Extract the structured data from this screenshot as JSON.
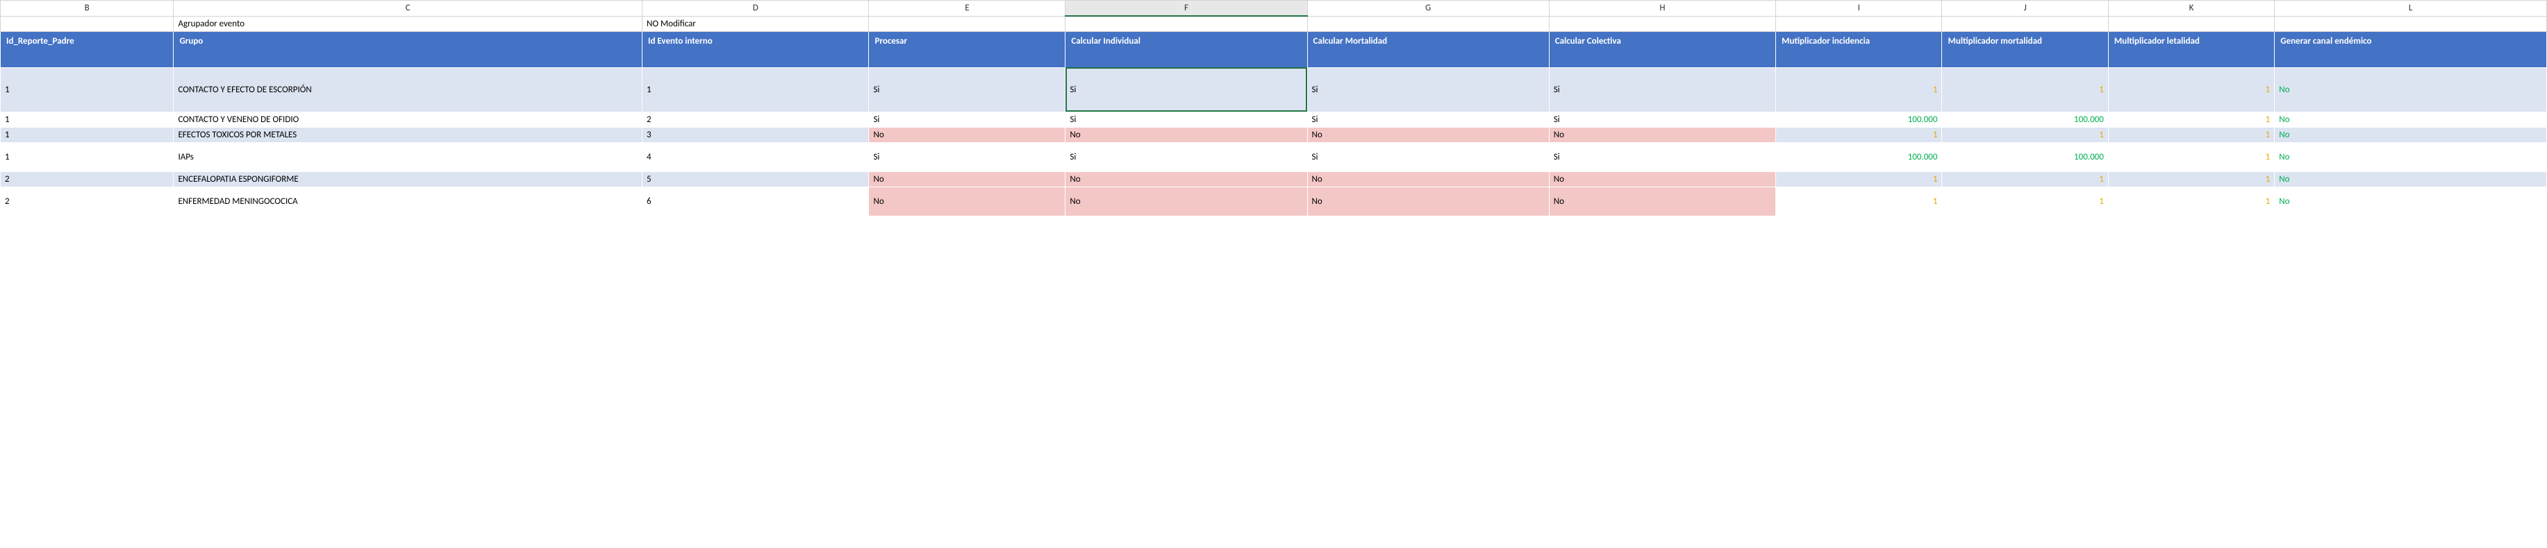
{
  "columns": {
    "letters": [
      "B",
      "C",
      "D",
      "E",
      "F",
      "G",
      "H",
      "I",
      "J",
      "K",
      "L"
    ],
    "selected": "F"
  },
  "label_row": {
    "C": "Agrupador evento",
    "D": "NO Modificar"
  },
  "headers": {
    "B": "Id_Reporte_Padre",
    "C": "Grupo",
    "D": "Id Evento interno",
    "E": "Procesar",
    "F": "Calcular Individual",
    "G": "Calcular Mortalidad",
    "H": "Calcular Colectiva",
    "I": "Mutiplicador incidencia",
    "J": "Multiplicador mortalidad",
    "K": "Multiplicador letalidad",
    "L": "Generar canal endémico"
  },
  "rows": [
    {
      "height": "tall",
      "even": true,
      "B": "1",
      "C": "CONTACTO Y EFECTO DE ESCORPIÓN",
      "D": "1",
      "E": {
        "v": "Si",
        "pink": false
      },
      "F": {
        "v": "Si",
        "pink": false,
        "selected": true
      },
      "G": {
        "v": "Si",
        "pink": false
      },
      "H": {
        "v": "Si",
        "pink": false
      },
      "I": {
        "v": "1",
        "cls": "orange"
      },
      "J": {
        "v": "1",
        "cls": "orange"
      },
      "K": {
        "v": "1",
        "cls": "orange"
      },
      "L": {
        "v": "No",
        "cls": "green"
      }
    },
    {
      "height": "",
      "even": false,
      "B": "1",
      "C": "CONTACTO Y VENENO DE OFIDIO",
      "D": "2",
      "E": {
        "v": "Si",
        "pink": false
      },
      "F": {
        "v": "Si",
        "pink": false
      },
      "G": {
        "v": "Si",
        "pink": false
      },
      "H": {
        "v": "Si",
        "pink": false
      },
      "I": {
        "v": "100.000",
        "cls": "green"
      },
      "J": {
        "v": "100.000",
        "cls": "green"
      },
      "K": {
        "v": "1",
        "cls": "orange"
      },
      "L": {
        "v": "No",
        "cls": "green"
      }
    },
    {
      "height": "",
      "even": true,
      "B": "1",
      "C": "EFECTOS TOXICOS POR METALES",
      "D": "3",
      "E": {
        "v": "No",
        "pink": true
      },
      "F": {
        "v": "No",
        "pink": true
      },
      "G": {
        "v": "No",
        "pink": true
      },
      "H": {
        "v": "No",
        "pink": true
      },
      "I": {
        "v": "1",
        "cls": "orange"
      },
      "J": {
        "v": "1",
        "cls": "orange"
      },
      "K": {
        "v": "1",
        "cls": "orange"
      },
      "L": {
        "v": "No",
        "cls": "green"
      }
    },
    {
      "height": "med",
      "even": false,
      "B": "1",
      "C": "IAPs",
      "D": "4",
      "E": {
        "v": "Si",
        "pink": false
      },
      "F": {
        "v": "Si",
        "pink": false
      },
      "G": {
        "v": "Si",
        "pink": false
      },
      "H": {
        "v": "Si",
        "pink": false
      },
      "I": {
        "v": "100.000",
        "cls": "green"
      },
      "J": {
        "v": "100.000",
        "cls": "green"
      },
      "K": {
        "v": "1",
        "cls": "orange"
      },
      "L": {
        "v": "No",
        "cls": "green"
      }
    },
    {
      "height": "",
      "even": true,
      "B": "2",
      "C": "ENCEFALOPATIA ESPONGIFORME",
      "D": "5",
      "E": {
        "v": "No",
        "pink": true
      },
      "F": {
        "v": "No",
        "pink": true
      },
      "G": {
        "v": "No",
        "pink": true
      },
      "H": {
        "v": "No",
        "pink": true
      },
      "I": {
        "v": "1",
        "cls": "orange"
      },
      "J": {
        "v": "1",
        "cls": "orange"
      },
      "K": {
        "v": "1",
        "cls": "orange"
      },
      "L": {
        "v": "No",
        "cls": "green"
      }
    },
    {
      "height": "med",
      "even": false,
      "B": "2",
      "C": "ENFERMEDAD MENINGOCOCICA",
      "D": "6",
      "E": {
        "v": "No",
        "pink": true
      },
      "F": {
        "v": "No",
        "pink": true
      },
      "G": {
        "v": "No",
        "pink": true
      },
      "H": {
        "v": "No",
        "pink": true
      },
      "I": {
        "v": "1",
        "cls": "orange"
      },
      "J": {
        "v": "1",
        "cls": "orange"
      },
      "K": {
        "v": "1",
        "cls": "orange"
      },
      "L": {
        "v": "No",
        "cls": "green"
      }
    }
  ],
  "colors": {
    "header_bg": "#4472c4",
    "header_fg": "#ffffff",
    "even_row": "#dce3f1",
    "odd_row": "#ffffff",
    "pink": "#f4c7c7",
    "orange": "#e2ac00",
    "green": "#00b050",
    "grid": "#d4d4d4",
    "selected_border": "#217346"
  }
}
